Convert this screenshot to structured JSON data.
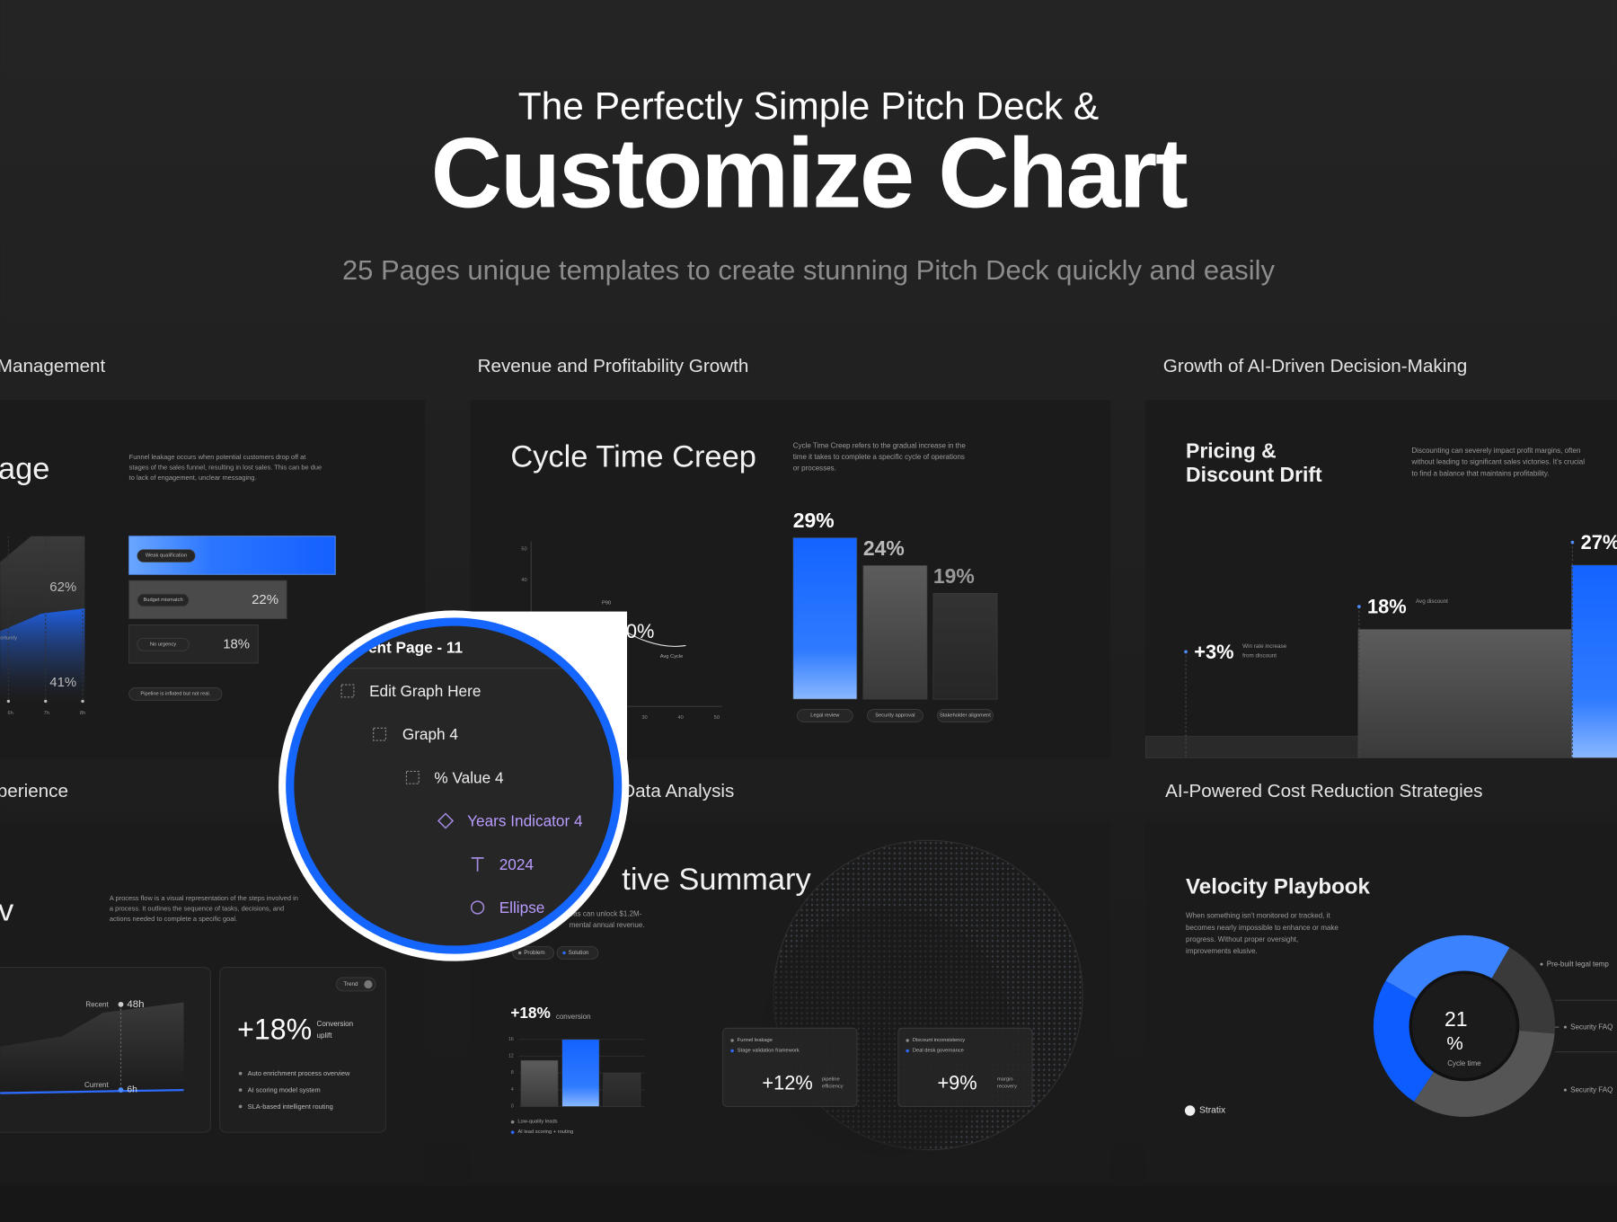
{
  "header": {
    "kicker": "The Perfectly Simple Pitch Deck &",
    "title": "Customize Chart",
    "tagline": "25 Pages unique templates to create stunning Pitch Deck quickly and easily"
  },
  "slides": [
    {
      "section": "Management",
      "title": "age",
      "description": [
        "Funnel leakage occurs when potential customers drop off at",
        "stages of the sales funnel, resulting in lost sales. This can be due",
        "to lack of engagement, unclear messaging."
      ],
      "funnel": [
        {
          "label": "Weak qualification"
        },
        {
          "label": "Budget mismatch",
          "value": 22,
          "value_label": "22%"
        },
        {
          "label": "No urgency",
          "value": 18,
          "value_label": "18%"
        }
      ],
      "note": "Pipeline is inflated but not real.",
      "area": {
        "labels": [
          "62%",
          "41%"
        ],
        "tag": "ortunity",
        "xticks": [
          "6h",
          "7h",
          "8h"
        ]
      }
    },
    {
      "section": "Revenue and Profitability Growth",
      "title": "Cycle Time Creep",
      "description": [
        "Cycle Time Creep refers to the gradual increase in the",
        "time it takes to complete a specific cycle of operations",
        "or processes."
      ],
      "bars": [
        {
          "label": "Legal review",
          "value": 29,
          "value_label": "29%"
        },
        {
          "label": "Security approval",
          "value": 24,
          "value_label": "24%"
        },
        {
          "label": "Stakeholder alignment",
          "value": 19,
          "value_label": "19%"
        }
      ],
      "line": {
        "yticks": [
          50,
          40
        ],
        "xticks": [
          30,
          40,
          50
        ],
        "marker": "P90",
        "legend": "Avg Cycle",
        "callout": "0%"
      }
    },
    {
      "section": "Growth of AI-Driven Decision-Making",
      "title": [
        "Pricing &",
        "Discount Drift"
      ],
      "description": [
        "Discounting can severely impact profit margins, often",
        "without leading to significant sales victories. It's crucial",
        "to find a balance that maintains profitability."
      ],
      "steps": [
        {
          "value": 3,
          "value_label": "+3%",
          "caption": [
            "Win rate increase",
            "from discount"
          ]
        },
        {
          "value": 18,
          "value_label": "18%",
          "caption": [
            "Avg discount"
          ]
        },
        {
          "value": 27,
          "value_label": "27%",
          "caption": []
        }
      ]
    },
    {
      "section": "perience",
      "title": "v",
      "description": [
        "A process flow is a visual representation of the steps involved in",
        "a process. It outlines the sequence of tasks, decisions, and",
        "actions needed to complete a specific goal."
      ],
      "trend": {
        "recent_label": "Recent",
        "recent_value": "48h",
        "current_label": "Current",
        "current_value": "6h"
      },
      "uplift": {
        "pill": "Trend",
        "value": "+18%",
        "caption": [
          "Conversion",
          "uplift"
        ],
        "bullets": [
          "Auto enrichment process overview",
          "AI scoring model system",
          "SLA-based intelligent routing"
        ]
      }
    },
    {
      "section": "Data Analysis",
      "title": "tive Summary",
      "description": [
        "eas can unlock $1.2M-",
        "mental annual revenue."
      ],
      "tags": [
        "Problem",
        "Solution"
      ],
      "metric": {
        "value": "+18%",
        "caption": "conversion"
      },
      "chart": {
        "ylim": [
          0,
          16
        ],
        "yticks": [
          0,
          4,
          8,
          12,
          16
        ],
        "values": [
          11,
          16,
          8
        ],
        "legend": [
          "Low-quality leads",
          "AI lead scoring + routing"
        ]
      },
      "cards": [
        {
          "items": [
            "Funnel leakage",
            "Stage validation framework"
          ],
          "value": "+12%",
          "caption": [
            "pipeline",
            "efficiency"
          ]
        },
        {
          "items": [
            "Discount inconsistency",
            "Deal desk governance"
          ],
          "value": "+9%",
          "caption": [
            "margin",
            "recovery"
          ]
        }
      ]
    },
    {
      "section": "AI-Powered Cost Reduction Strategies",
      "title": "Velocity Playbook",
      "description": [
        "When something isn't monitored or tracked, it",
        "becomes nearly impossible to enhance or make",
        "progress. Without proper oversight,",
        "improvements elusive."
      ],
      "donut": {
        "values": [
          25,
          18,
          33,
          24
        ],
        "colors": [
          "#3b82ff",
          "#3a3a3a",
          "#555555",
          "#0d5cff"
        ],
        "center_value": "21",
        "center_unit": "%",
        "center_caption": "Cycle time"
      },
      "legend": [
        "Pre-built legal temp",
        "Security FAQ",
        "Security FAQ"
      ],
      "brand": "Stratix"
    }
  ],
  "layers_panel": {
    "header": "ent Page - 11",
    "items": [
      "Edit Graph Here",
      "Graph 4",
      "% Value 4",
      "Years Indicator 4",
      "2024",
      "Ellipse"
    ]
  }
}
